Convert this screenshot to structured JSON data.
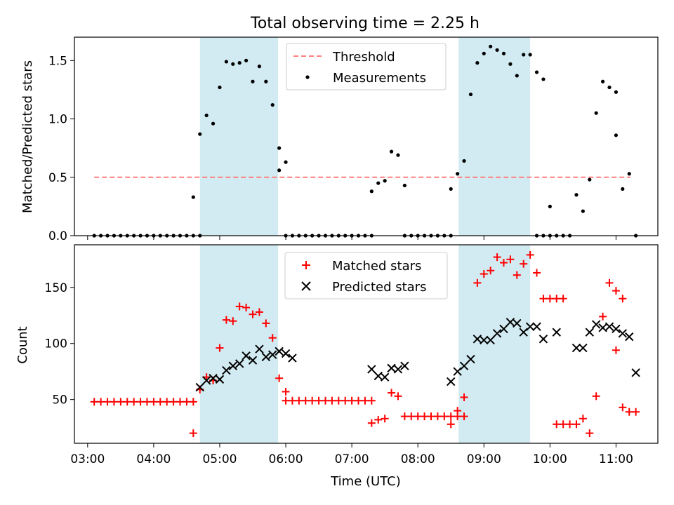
{
  "title": "Total observing time = 2.25 h",
  "colors": {
    "threshold": "#ff7f7f",
    "measurements": "#000000",
    "matched": "#ff0000",
    "predicted": "#000000",
    "shade": "#add8e6"
  },
  "chart_data": [
    {
      "type": "scatter",
      "ylabel": "Matched/Predicted stars",
      "ylim": [
        0,
        1.7
      ],
      "xlim": [
        "02:48",
        "11:38"
      ],
      "yticks": [
        "0.0",
        "0.5",
        "1.0",
        "1.5"
      ],
      "grid": false,
      "legend_position": "upper-center",
      "threshold": {
        "label": "Threshold",
        "value": 0.5,
        "x": [
          "03:06",
          "11:13"
        ],
        "style": "dashed"
      },
      "shaded_intervals": [
        [
          "04:42",
          "05:53"
        ],
        [
          "08:37",
          "09:42"
        ]
      ],
      "series": [
        {
          "name": "Measurements",
          "points": [
            [
              "03:06",
              0
            ],
            [
              "03:12",
              0
            ],
            [
              "03:18",
              0
            ],
            [
              "03:24",
              0
            ],
            [
              "03:30",
              0
            ],
            [
              "03:36",
              0
            ],
            [
              "03:42",
              0
            ],
            [
              "03:48",
              0
            ],
            [
              "03:54",
              0
            ],
            [
              "04:00",
              0
            ],
            [
              "04:06",
              0
            ],
            [
              "04:12",
              0
            ],
            [
              "04:18",
              0
            ],
            [
              "04:24",
              0
            ],
            [
              "04:30",
              0
            ],
            [
              "04:36",
              0
            ],
            [
              "04:42",
              0
            ],
            [
              "04:36",
              0.33
            ],
            [
              "04:42",
              0.87
            ],
            [
              "04:48",
              1.03
            ],
            [
              "04:54",
              0.96
            ],
            [
              "05:00",
              1.27
            ],
            [
              "05:06",
              1.49
            ],
            [
              "05:12",
              1.47
            ],
            [
              "05:18",
              1.48
            ],
            [
              "05:24",
              1.5
            ],
            [
              "05:30",
              1.32
            ],
            [
              "05:36",
              1.45
            ],
            [
              "05:42",
              1.32
            ],
            [
              "05:48",
              1.12
            ],
            [
              "05:54",
              0.75
            ],
            [
              "06:00",
              0.63
            ],
            [
              "05:54",
              0.56
            ],
            [
              "06:00",
              0
            ],
            [
              "06:06",
              0
            ],
            [
              "06:12",
              0
            ],
            [
              "06:18",
              0
            ],
            [
              "06:24",
              0
            ],
            [
              "06:30",
              0
            ],
            [
              "06:36",
              0
            ],
            [
              "06:42",
              0
            ],
            [
              "06:48",
              0
            ],
            [
              "06:54",
              0
            ],
            [
              "07:00",
              0
            ],
            [
              "07:06",
              0
            ],
            [
              "07:12",
              0
            ],
            [
              "07:18",
              0
            ],
            [
              "07:18",
              0.38
            ],
            [
              "07:24",
              0.45
            ],
            [
              "07:30",
              0.47
            ],
            [
              "07:36",
              0.72
            ],
            [
              "07:42",
              0.69
            ],
            [
              "07:48",
              0.43
            ],
            [
              "07:48",
              0
            ],
            [
              "07:54",
              0
            ],
            [
              "08:00",
              0
            ],
            [
              "08:06",
              0
            ],
            [
              "08:12",
              0
            ],
            [
              "08:18",
              0
            ],
            [
              "08:24",
              0
            ],
            [
              "08:30",
              0
            ],
            [
              "08:30",
              0.4
            ],
            [
              "08:36",
              0.53
            ],
            [
              "08:42",
              0.64
            ],
            [
              "08:48",
              1.21
            ],
            [
              "08:54",
              1.48
            ],
            [
              "09:00",
              1.56
            ],
            [
              "09:06",
              1.62
            ],
            [
              "09:12",
              1.59
            ],
            [
              "09:18",
              1.56
            ],
            [
              "09:24",
              1.47
            ],
            [
              "09:30",
              1.37
            ],
            [
              "09:36",
              1.55
            ],
            [
              "09:42",
              1.55
            ],
            [
              "09:48",
              1.4
            ],
            [
              "09:54",
              1.34
            ],
            [
              "09:48",
              0
            ],
            [
              "09:54",
              0
            ],
            [
              "10:00",
              0
            ],
            [
              "10:06",
              0
            ],
            [
              "10:12",
              0
            ],
            [
              "10:18",
              0
            ],
            [
              "10:00",
              0.25
            ],
            [
              "10:24",
              0.35
            ],
            [
              "10:30",
              0.21
            ],
            [
              "10:36",
              0.48
            ],
            [
              "10:42",
              1.05
            ],
            [
              "10:48",
              1.32
            ],
            [
              "10:54",
              1.27
            ],
            [
              "11:00",
              1.23
            ],
            [
              "11:00",
              0.86
            ],
            [
              "11:06",
              0.4
            ],
            [
              "11:12",
              0.53
            ],
            [
              "11:18",
              0
            ]
          ]
        }
      ]
    },
    {
      "type": "scatter",
      "xlabel": "Time (UTC)",
      "ylabel": "Count",
      "ylim": [
        11,
        188
      ],
      "xlim": [
        "02:48",
        "11:38"
      ],
      "yticks": [
        "50",
        "100",
        "150"
      ],
      "xticks": [
        "03:00",
        "04:00",
        "05:00",
        "06:00",
        "07:00",
        "08:00",
        "09:00",
        "10:00",
        "11:00"
      ],
      "grid": false,
      "legend_position": "upper-center",
      "shaded_intervals": [
        [
          "04:42",
          "05:53"
        ],
        [
          "08:37",
          "09:42"
        ]
      ],
      "series": [
        {
          "name": "Matched stars",
          "marker": "plus",
          "points": [
            [
              "03:06",
              48
            ],
            [
              "03:12",
              48
            ],
            [
              "03:18",
              48
            ],
            [
              "03:24",
              48
            ],
            [
              "03:30",
              48
            ],
            [
              "03:36",
              48
            ],
            [
              "03:42",
              48
            ],
            [
              "03:48",
              48
            ],
            [
              "03:54",
              48
            ],
            [
              "04:00",
              48
            ],
            [
              "04:06",
              48
            ],
            [
              "04:12",
              48
            ],
            [
              "04:18",
              48
            ],
            [
              "04:24",
              48
            ],
            [
              "04:30",
              48
            ],
            [
              "04:36",
              48
            ],
            [
              "04:36",
              20
            ],
            [
              "04:42",
              59
            ],
            [
              "04:48",
              70
            ],
            [
              "04:54",
              67
            ],
            [
              "05:00",
              96
            ],
            [
              "05:06",
              121
            ],
            [
              "05:12",
              120
            ],
            [
              "05:18",
              133
            ],
            [
              "05:24",
              132
            ],
            [
              "05:30",
              126
            ],
            [
              "05:36",
              128
            ],
            [
              "05:42",
              118
            ],
            [
              "05:48",
              105
            ],
            [
              "05:54",
              69
            ],
            [
              "06:00",
              57
            ],
            [
              "06:00",
              49
            ],
            [
              "06:06",
              49
            ],
            [
              "06:12",
              49
            ],
            [
              "06:18",
              49
            ],
            [
              "06:24",
              49
            ],
            [
              "06:30",
              49
            ],
            [
              "06:36",
              49
            ],
            [
              "06:42",
              49
            ],
            [
              "06:48",
              49
            ],
            [
              "06:54",
              49
            ],
            [
              "07:00",
              49
            ],
            [
              "07:06",
              49
            ],
            [
              "07:12",
              49
            ],
            [
              "07:18",
              49
            ],
            [
              "07:18",
              29
            ],
            [
              "07:24",
              32
            ],
            [
              "07:30",
              33
            ],
            [
              "07:36",
              56
            ],
            [
              "07:42",
              53
            ],
            [
              "07:48",
              35
            ],
            [
              "07:54",
              35
            ],
            [
              "08:00",
              35
            ],
            [
              "08:06",
              35
            ],
            [
              "08:12",
              35
            ],
            [
              "08:18",
              35
            ],
            [
              "08:24",
              35
            ],
            [
              "08:30",
              35
            ],
            [
              "08:36",
              35
            ],
            [
              "08:42",
              35
            ],
            [
              "08:30",
              28
            ],
            [
              "08:36",
              40
            ],
            [
              "08:42",
              52
            ],
            [
              "08:54",
              154
            ],
            [
              "09:00",
              162
            ],
            [
              "09:06",
              165
            ],
            [
              "09:12",
              177
            ],
            [
              "09:18",
              172
            ],
            [
              "09:24",
              175
            ],
            [
              "09:30",
              161
            ],
            [
              "09:36",
              171
            ],
            [
              "09:42",
              179
            ],
            [
              "09:48",
              163
            ],
            [
              "09:54",
              140
            ],
            [
              "10:00",
              140
            ],
            [
              "10:06",
              140
            ],
            [
              "10:12",
              140
            ],
            [
              "10:06",
              28
            ],
            [
              "10:12",
              28
            ],
            [
              "10:18",
              28
            ],
            [
              "10:24",
              28
            ],
            [
              "10:30",
              33
            ],
            [
              "10:36",
              20
            ],
            [
              "10:42",
              53
            ],
            [
              "10:48",
              124
            ],
            [
              "10:54",
              154
            ],
            [
              "11:00",
              147
            ],
            [
              "11:06",
              140
            ],
            [
              "11:00",
              94
            ],
            [
              "11:06",
              43
            ],
            [
              "11:12",
              39
            ],
            [
              "11:18",
              39
            ]
          ]
        },
        {
          "name": "Predicted stars",
          "marker": "x",
          "points": [
            [
              "04:42",
              61
            ],
            [
              "04:48",
              67
            ],
            [
              "04:54",
              69
            ],
            [
              "05:00",
              68
            ],
            [
              "05:06",
              76
            ],
            [
              "05:12",
              80
            ],
            [
              "05:18",
              82
            ],
            [
              "05:24",
              89
            ],
            [
              "05:30",
              85
            ],
            [
              "05:36",
              95
            ],
            [
              "05:42",
              88
            ],
            [
              "05:48",
              90
            ],
            [
              "05:54",
              93
            ],
            [
              "06:00",
              91
            ],
            [
              "06:06",
              87
            ],
            [
              "07:18",
              77
            ],
            [
              "07:24",
              71
            ],
            [
              "07:30",
              70
            ],
            [
              "07:36",
              78
            ],
            [
              "07:42",
              77
            ],
            [
              "07:48",
              80
            ],
            [
              "08:30",
              66
            ],
            [
              "08:36",
              75
            ],
            [
              "08:42",
              80
            ],
            [
              "08:48",
              86
            ],
            [
              "08:54",
              104
            ],
            [
              "09:00",
              103
            ],
            [
              "09:06",
              103
            ],
            [
              "09:12",
              109
            ],
            [
              "09:18",
              113
            ],
            [
              "09:24",
              119
            ],
            [
              "09:30",
              118
            ],
            [
              "09:36",
              110
            ],
            [
              "09:42",
              115
            ],
            [
              "09:48",
              115
            ],
            [
              "09:54",
              104
            ],
            [
              "10:06",
              110
            ],
            [
              "10:24",
              96
            ],
            [
              "10:30",
              96
            ],
            [
              "10:36",
              110
            ],
            [
              "10:42",
              117
            ],
            [
              "10:48",
              114
            ],
            [
              "10:54",
              115
            ],
            [
              "11:00",
              113
            ],
            [
              "11:06",
              109
            ],
            [
              "11:12",
              106
            ],
            [
              "11:18",
              74
            ]
          ]
        }
      ]
    }
  ]
}
